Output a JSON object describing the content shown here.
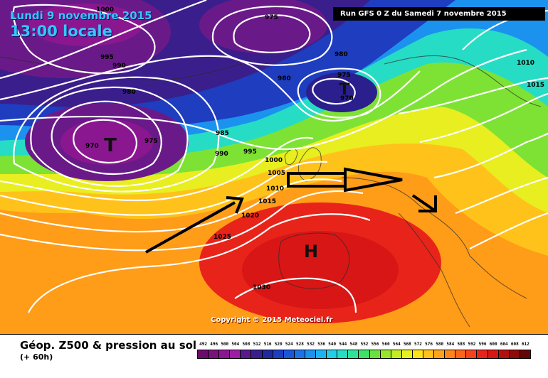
{
  "header": {
    "date": "Lundi 9 novembre 2015",
    "local_time": "13:00 locale",
    "run": "Run GFS 0 Z du Samedi 7 novembre 2015"
  },
  "copyright": "Copyright © 2015 Meteociel.fr",
  "legend": {
    "title": "Géop. Z500 & pression au sol",
    "subtitle": "(+ 60h)",
    "scale": [
      {
        "value": "492",
        "color": "#6b0b6b"
      },
      {
        "value": "496",
        "color": "#7a127d"
      },
      {
        "value": "500",
        "color": "#8a1790"
      },
      {
        "value": "504",
        "color": "#9c1ea3"
      },
      {
        "value": "508",
        "color": "#5a1a8e"
      },
      {
        "value": "512",
        "color": "#3a1f8c"
      },
      {
        "value": "516",
        "color": "#1f2a9c"
      },
      {
        "value": "520",
        "color": "#1e3dbf"
      },
      {
        "value": "524",
        "color": "#1956d8"
      },
      {
        "value": "528",
        "color": "#1c73e8"
      },
      {
        "value": "532",
        "color": "#1c92ef"
      },
      {
        "value": "536",
        "color": "#1db3f2"
      },
      {
        "value": "540",
        "color": "#22cde6"
      },
      {
        "value": "544",
        "color": "#27dcc4"
      },
      {
        "value": "548",
        "color": "#2fe29a"
      },
      {
        "value": "552",
        "color": "#3de267"
      },
      {
        "value": "556",
        "color": "#67e23e"
      },
      {
        "value": "560",
        "color": "#97e52b"
      },
      {
        "value": "564",
        "color": "#c4ea24"
      },
      {
        "value": "568",
        "color": "#e8ee1f"
      },
      {
        "value": "572",
        "color": "#fde21a"
      },
      {
        "value": "576",
        "color": "#ffc21a"
      },
      {
        "value": "580",
        "color": "#ffa31a"
      },
      {
        "value": "584",
        "color": "#ff851a"
      },
      {
        "value": "588",
        "color": "#fb651a"
      },
      {
        "value": "592",
        "color": "#f2431a"
      },
      {
        "value": "596",
        "color": "#e8241a"
      },
      {
        "value": "600",
        "color": "#d81616"
      },
      {
        "value": "604",
        "color": "#b40f0f"
      },
      {
        "value": "608",
        "color": "#8f0a0a"
      },
      {
        "value": "612",
        "color": "#650606"
      }
    ]
  },
  "map": {
    "pressure_labels": [
      "1000",
      "975",
      "995",
      "990",
      "980",
      "980",
      "980",
      "975",
      "970",
      "975",
      "985",
      "990",
      "995",
      "1000",
      "1005",
      "1010",
      "1015",
      "1020",
      "1025",
      "1030",
      "1010",
      "1015",
      "970"
    ],
    "low_marks": [
      "T",
      "T"
    ],
    "high_marks": [
      "H"
    ],
    "arrows": [
      "flow-arrow-southwest",
      "flow-arrow-atlantic",
      "flow-arrow-east"
    ],
    "icons": [
      "low-pressure-symbol",
      "high-pressure-symbol",
      "arrow-icon"
    ]
  }
}
